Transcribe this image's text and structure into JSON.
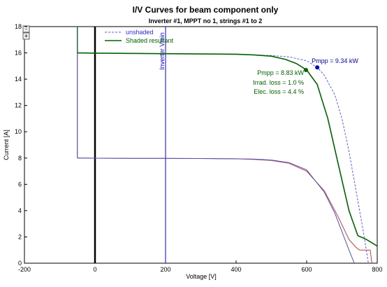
{
  "chart_data": {
    "type": "line",
    "title": "I/V Curves for beam component only",
    "subtitle": "Inverter  #1, MPPT no 1, strings #1 to 2",
    "xlabel": "Voltage [V]",
    "ylabel": "Current [A]",
    "xlim": [
      -200,
      800
    ],
    "ylim": [
      0,
      18
    ],
    "xticks": [
      -200,
      0,
      200,
      400,
      600,
      800
    ],
    "yticks": [
      0,
      2,
      4,
      6,
      8,
      10,
      12,
      14,
      16,
      18
    ],
    "grid": false,
    "legend_position": "top-right",
    "series": [
      {
        "name": "unshaded",
        "color": "#5a5aff",
        "style": "dashed",
        "x": [
          -50,
          0,
          100,
          200,
          300,
          400,
          500,
          550,
          600,
          630,
          650,
          680,
          700,
          720,
          740,
          760,
          775
        ],
        "y": [
          16.0,
          15.98,
          15.96,
          15.94,
          15.92,
          15.88,
          15.8,
          15.7,
          15.4,
          14.9,
          14.3,
          12.8,
          11.0,
          8.5,
          5.5,
          2.5,
          0
        ]
      },
      {
        "name": "Shaded resultant",
        "color": "#006400",
        "style": "solid",
        "x": [
          -50,
          0,
          100,
          200,
          300,
          400,
          450,
          500,
          540,
          570,
          600,
          630,
          660,
          690,
          720,
          745,
          770,
          800
        ],
        "y": [
          16.0,
          15.98,
          15.96,
          15.94,
          15.92,
          15.9,
          15.85,
          15.75,
          15.5,
          15.2,
          14.7,
          13.6,
          11.0,
          7.5,
          4.0,
          2.1,
          1.8,
          1.3
        ]
      },
      {
        "color": "#c04040",
        "style": "solid",
        "x": [
          -50,
          0,
          100,
          200,
          300,
          400,
          450,
          500,
          550,
          600,
          650,
          690,
          720,
          740,
          750,
          780,
          785
        ],
        "y": [
          8.0,
          7.99,
          7.98,
          7.97,
          7.96,
          7.94,
          7.9,
          7.82,
          7.6,
          7.0,
          5.5,
          3.5,
          1.8,
          1.2,
          1.0,
          1.0,
          0
        ]
      },
      {
        "color": "#5050c0",
        "style": "solid",
        "x": [
          -50,
          0,
          100,
          200,
          300,
          400,
          450,
          500,
          550,
          600,
          650,
          680,
          700,
          720,
          735
        ],
        "y": [
          8.0,
          7.99,
          7.98,
          7.97,
          7.96,
          7.94,
          7.92,
          7.85,
          7.65,
          7.1,
          5.4,
          3.8,
          2.4,
          1.0,
          0
        ]
      }
    ],
    "vertical_lines": [
      {
        "label": "Inverter Vmin",
        "x": 200,
        "color": "#0000c0"
      }
    ],
    "annotations": [
      {
        "text": "Pmpp = 9.34 kW",
        "x": 630,
        "y": 14.9,
        "color": "#0000c0"
      },
      {
        "text": "Pmpp = 8.83 kW",
        "x": 598,
        "y": 14.7,
        "color": "#006400"
      },
      {
        "text": "Irrad. loss = 1.0 %",
        "color": "#006400"
      },
      {
        "text": "Elec. loss = 4.4 %",
        "color": "#006400"
      }
    ]
  },
  "zoom_controls": {
    "minus": "-",
    "plus": "+"
  }
}
